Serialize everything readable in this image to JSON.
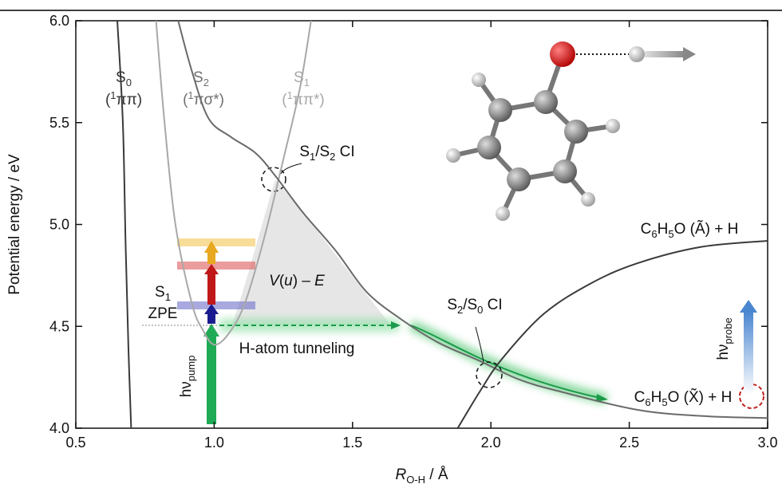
{
  "chart_data": {
    "type": "line",
    "xlim": [
      0.5,
      3.0
    ],
    "ylim": [
      4.0,
      6.0
    ],
    "xticks": [
      0.5,
      {
        "value": 1,
        "label": "1.0"
      },
      1.5,
      {
        "value": 2,
        "label": "2.0"
      },
      2.5,
      {
        "value": 3,
        "label": "3.0"
      }
    ],
    "yticks": [
      {
        "value": 4,
        "label": "4.0"
      },
      4.5,
      {
        "value": 5,
        "label": "5.0"
      },
      5.5,
      {
        "value": 6,
        "label": "6.0"
      }
    ],
    "ylabel": "Potential energy / eV",
    "xlabel": [
      {
        "i": "R"
      },
      {
        "sub": "O-H"
      },
      {
        "t": " / Å"
      }
    ],
    "series": [
      {
        "color": "#3a3a3a",
        "x": [
          0.65,
          0.67,
          0.68,
          0.69,
          0.7
        ],
        "values": [
          6.0,
          5.5,
          4.9,
          4.4,
          4.0
        ]
      },
      {
        "color": "#a8a8a8",
        "x": [
          0.79,
          0.82,
          0.86,
          0.92,
          0.96,
          1.0,
          1.05,
          1.11,
          1.18,
          1.25,
          1.31,
          1.35
        ],
        "values": [
          6.0,
          5.51,
          5.0,
          4.61,
          4.48,
          4.41,
          4.46,
          4.61,
          4.93,
          5.32,
          5.67,
          6.0
        ]
      },
      {
        "color": "#6a6a6a",
        "x": [
          0.87,
          0.92,
          0.98,
          1.06,
          1.15,
          1.22,
          1.32,
          1.44,
          1.55,
          1.67,
          1.81,
          1.96,
          2.1,
          2.25,
          2.53,
          2.76,
          3.0
        ],
        "values": [
          6.0,
          5.75,
          5.52,
          5.43,
          5.35,
          5.24,
          5.06,
          4.87,
          4.67,
          4.54,
          4.42,
          4.33,
          4.24,
          4.18,
          4.09,
          4.06,
          4.05
        ]
      },
      {
        "color": "#3a3a3a",
        "x": [
          1.88,
          1.96,
          2.04,
          2.19,
          2.36,
          2.53,
          2.76,
          3.0
        ],
        "values": [
          4.0,
          4.18,
          4.34,
          4.56,
          4.71,
          4.81,
          4.89,
          4.92
        ]
      }
    ],
    "annotations": [
      {
        "color": "#333",
        "parts": [
          {
            "t": "S"
          },
          {
            "sub": "0"
          }
        ]
      },
      {
        "color": "#333",
        "parts": [
          {
            "t": "("
          },
          {
            "sup": "1"
          },
          {
            "t": "ππ)"
          }
        ]
      },
      {
        "color": "#707070",
        "parts": [
          {
            "t": "S"
          },
          {
            "sub": "2"
          }
        ]
      },
      {
        "color": "#707070",
        "parts": [
          {
            "t": "("
          },
          {
            "sup": "1"
          },
          {
            "t": "πσ*)"
          }
        ]
      },
      {
        "color": "#a8a8a8",
        "parts": [
          {
            "t": "S"
          },
          {
            "sub": "1"
          }
        ]
      },
      {
        "color": "#a8a8a8",
        "parts": [
          {
            "t": "("
          },
          {
            "sup": "1"
          },
          {
            "t": "ππ*)"
          }
        ]
      },
      {
        "color": "#111",
        "parts": [
          {
            "t": "S"
          },
          {
            "sub": "1"
          },
          {
            "t": "/S"
          },
          {
            "sub": "2"
          },
          {
            "t": " CI"
          }
        ]
      },
      {
        "color": "#111",
        "parts": [
          {
            "i": "V"
          },
          {
            "t": "("
          },
          {
            "i": "u"
          },
          {
            "t": ") – "
          },
          {
            "i": "E"
          }
        ]
      },
      {
        "color": "#111",
        "parts": [
          {
            "t": "S"
          },
          {
            "sub": "1"
          }
        ]
      },
      {
        "color": "#111",
        "parts": [
          {
            "t": "ZPE"
          }
        ]
      },
      {
        "color": "#111",
        "parts": [
          {
            "t": "H-atom tunneling"
          }
        ]
      },
      {
        "color": "#111",
        "parts": [
          {
            "t": "S"
          },
          {
            "sub": "2"
          },
          {
            "t": "/S"
          },
          {
            "sub": "0"
          },
          {
            "t": " CI"
          }
        ]
      },
      {
        "color": "#111",
        "parts": [
          {
            "t": "C"
          },
          {
            "sub": "6"
          },
          {
            "t": "H"
          },
          {
            "sub": "5"
          },
          {
            "t": "O (Ã)  +   H"
          }
        ]
      },
      {
        "color": "#111",
        "parts": [
          {
            "t": "C"
          },
          {
            "sub": "6"
          },
          {
            "t": "H"
          },
          {
            "sub": "5"
          },
          {
            "t": "O (X̃)  +   H"
          }
        ]
      },
      {
        "color": "#111",
        "parts": [
          {
            "t": "hν"
          },
          {
            "sub": "pump"
          }
        ]
      },
      {
        "color": "#111",
        "parts": [
          {
            "t": "hν"
          },
          {
            "sub": "probe"
          }
        ]
      }
    ]
  }
}
